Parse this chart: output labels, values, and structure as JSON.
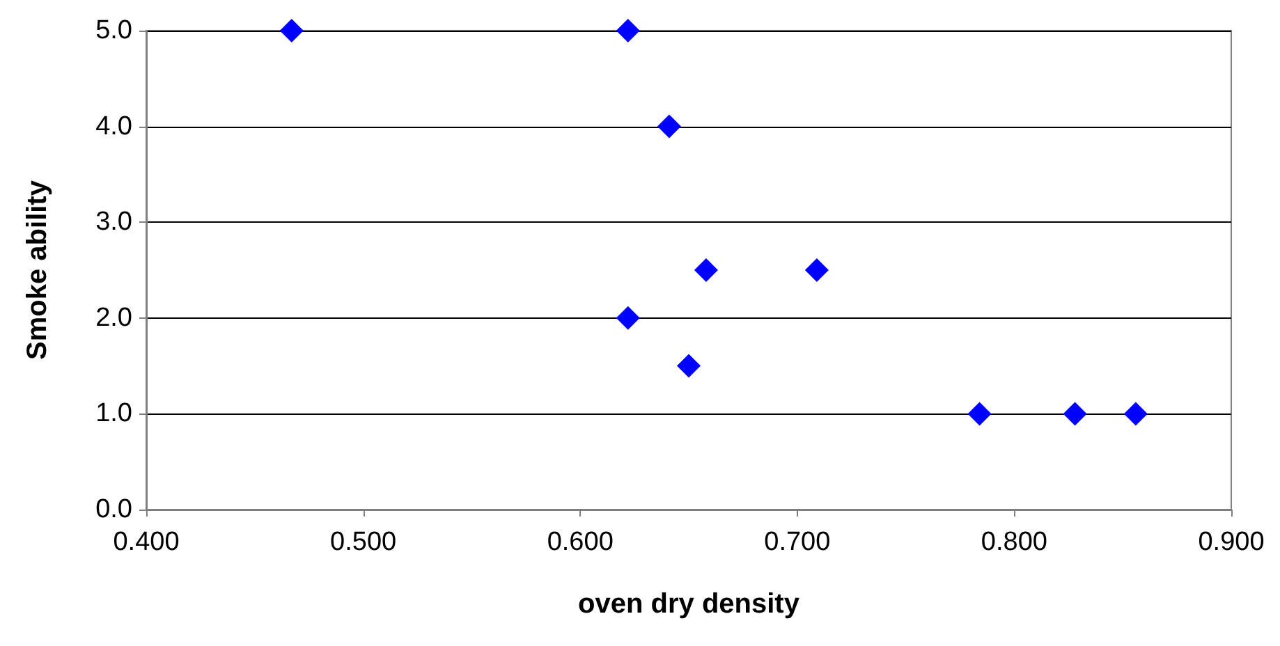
{
  "chart_data": {
    "type": "scatter",
    "xlabel": "oven dry density",
    "ylabel": "Smoke ability",
    "x": [
      0.467,
      0.622,
      0.641,
      0.658,
      0.709,
      0.622,
      0.65,
      0.784,
      0.828,
      0.856
    ],
    "series": [
      {
        "color": "#0000ff",
        "values": [
          5.0,
          5.0,
          4.0,
          2.5,
          2.5,
          2.0,
          1.5,
          1.0,
          1.0,
          1.0
        ]
      }
    ],
    "xlim": [
      0.4,
      0.9
    ],
    "xticks": [
      {
        "value": 0.4,
        "label": "0.400"
      },
      {
        "value": 0.5,
        "label": "0.500"
      },
      {
        "value": 0.6,
        "label": "0.600"
      },
      {
        "value": 0.7,
        "label": "0.700"
      },
      {
        "value": 0.8,
        "label": "0.800"
      },
      {
        "value": 0.9,
        "label": "0.900"
      }
    ],
    "ylim": [
      0,
      5
    ],
    "yticks": [
      {
        "value": 0,
        "label": "0.0"
      },
      {
        "value": 1,
        "label": "1.0"
      },
      {
        "value": 2,
        "label": "2.0"
      },
      {
        "value": 3,
        "label": "3.0"
      },
      {
        "value": 4,
        "label": "4.0"
      },
      {
        "value": 5,
        "label": "5.0"
      }
    ],
    "grid": "y",
    "marker": "diamond"
  }
}
